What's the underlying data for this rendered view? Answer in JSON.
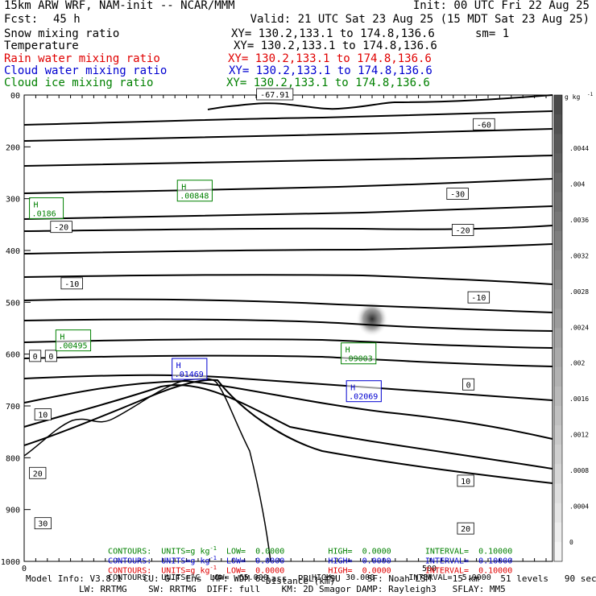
{
  "header": {
    "model": "15km ARW WRF, NAM-init -- NCAR/MMM",
    "init": "Init: 00 UTC Fri 22 Aug 25",
    "fcst_label": "Fcst:",
    "fcst_value": "45 h",
    "valid": "Valid: 21 UTC Sat 23 Aug 25 (15 MDT Sat 23 Aug 25)",
    "fields": [
      {
        "name": "Snow mixing ratio",
        "xy": "XY= 130.2,133.1 to 174.8,136.6",
        "extra": "sm= 1",
        "color": "#000000"
      },
      {
        "name": "Temperature",
        "xy": "XY= 130.2,133.1 to 174.8,136.6",
        "extra": "",
        "color": "#000000"
      },
      {
        "name": "Rain water mixing ratio",
        "xy": "XY= 130.2,133.1 to 174.8,136.6",
        "extra": "",
        "color": "#e00000"
      },
      {
        "name": "Cloud water mixing ratio",
        "xy": "XY= 130.2,133.1 to 174.8,136.6",
        "extra": "",
        "color": "#0000d0"
      },
      {
        "name": "Cloud ice mixing ratio",
        "xy": "XY= 130.2,133.1 to 174.8,136.6",
        "extra": "",
        "color": "#008000"
      }
    ]
  },
  "chart_data": {
    "type": "contour",
    "xlabel": "Distance (km)",
    "x_tick_labels": [
      "0",
      "500"
    ],
    "y_tick_labels": [
      "00",
      "200",
      "300",
      "400",
      "500",
      "600",
      "700",
      "800",
      "900",
      "1000"
    ],
    "ylim": [
      1000,
      100
    ],
    "isotherm_labels": [
      {
        "label": "-67.91",
        "x_frac": 0.44,
        "p": 100
      },
      {
        "label": "-60",
        "x_frac": 0.85,
        "p": 158
      },
      {
        "label": "-30",
        "x_frac": 0.8,
        "p": 292
      },
      {
        "label": "-20",
        "x_frac": 0.05,
        "p": 356
      },
      {
        "label": "-20",
        "x_frac": 0.81,
        "p": 362
      },
      {
        "label": "-10",
        "x_frac": 0.07,
        "p": 465
      },
      {
        "label": "-10",
        "x_frac": 0.84,
        "p": 492
      },
      {
        "label": "0",
        "x_frac": 0.01,
        "p": 605
      },
      {
        "label": "0",
        "x_frac": 0.04,
        "p": 605
      },
      {
        "label": "0",
        "x_frac": 0.83,
        "p": 660
      },
      {
        "label": "10",
        "x_frac": 0.02,
        "p": 718
      },
      {
        "label": "10",
        "x_frac": 0.82,
        "p": 846
      },
      {
        "label": "20",
        "x_frac": 0.01,
        "p": 831
      },
      {
        "label": "20",
        "x_frac": 0.82,
        "p": 938
      },
      {
        "label": "30",
        "x_frac": 0.02,
        "p": 928
      }
    ],
    "maxima": [
      {
        "label": "H",
        "value": ".0186",
        "color": "#008000",
        "x_frac": 0.01,
        "p": 317
      },
      {
        "label": "H",
        "value": ".00848",
        "color": "#008000",
        "x_frac": 0.29,
        "p": 283
      },
      {
        "label": "H",
        "value": ".00495",
        "color": "#008000",
        "x_frac": 0.06,
        "p": 572
      },
      {
        "label": "H",
        "value": ".01469",
        "color": "#0000d0",
        "x_frac": 0.28,
        "p": 627
      },
      {
        "label": "H",
        "value": ".09003",
        "color": "#008000",
        "x_frac": 0.6,
        "p": 597
      },
      {
        "label": "H",
        "value": ".02069",
        "color": "#0000d0",
        "x_frac": 0.61,
        "p": 670
      }
    ],
    "colorbar": {
      "units": "g kg",
      "units_exp": "-1",
      "tick_labels": [
        ".0044",
        ".004",
        ".0036",
        ".0032",
        ".0028",
        ".0024",
        ".002",
        ".0016",
        ".0012",
        ".0008",
        ".0004",
        "0"
      ],
      "shade_top": "#4a4a4a",
      "shade_bottom": "#f4f4f4"
    },
    "contour_info": [
      {
        "contours": "CONTOURS:",
        "units": "UNITS=g kg",
        "exp": "-1",
        "low": "LOW=  0.0000",
        "high": "HIGH=  0.0000",
        "interval": "INTERVAL=  0.10000",
        "color": "#008000"
      },
      {
        "contours": "CONTOURS:",
        "units": "UNITS=g kg",
        "exp": "-1",
        "low": "LOW=  0.0000",
        "high": "HIGH=  0.0000",
        "interval": "INTERVAL=  0.10000",
        "color": "#0000d0"
      },
      {
        "contours": "CONTOURS:",
        "units": "UNITS=g kg",
        "exp": "-1",
        "low": "LOW=  0.0000",
        "high": "HIGH=  0.0000",
        "interval": "INTERVAL=  0.10000",
        "color": "#e00000"
      },
      {
        "contours": "CONTOURS:",
        "units": "UNITS=°C",
        "exp": "",
        "low": "LOW= -65.000",
        "high": "HIGH=  30.000",
        "interval": "INTERVAL=  5.0000",
        "color": "#000000"
      }
    ]
  },
  "footer": {
    "line1": "Model Info: V3.8.1    CU: G-F Ens  MP: WDM 6class  PBL: YSU     SF: Noah LSM    15 km    51 levels   90 sec",
    "line2": "LW: RRTMG    SW: RRTMG  DIFF: full    KM: 2D Smagor DAMP: Rayleigh3   SFLAY: MM5"
  }
}
